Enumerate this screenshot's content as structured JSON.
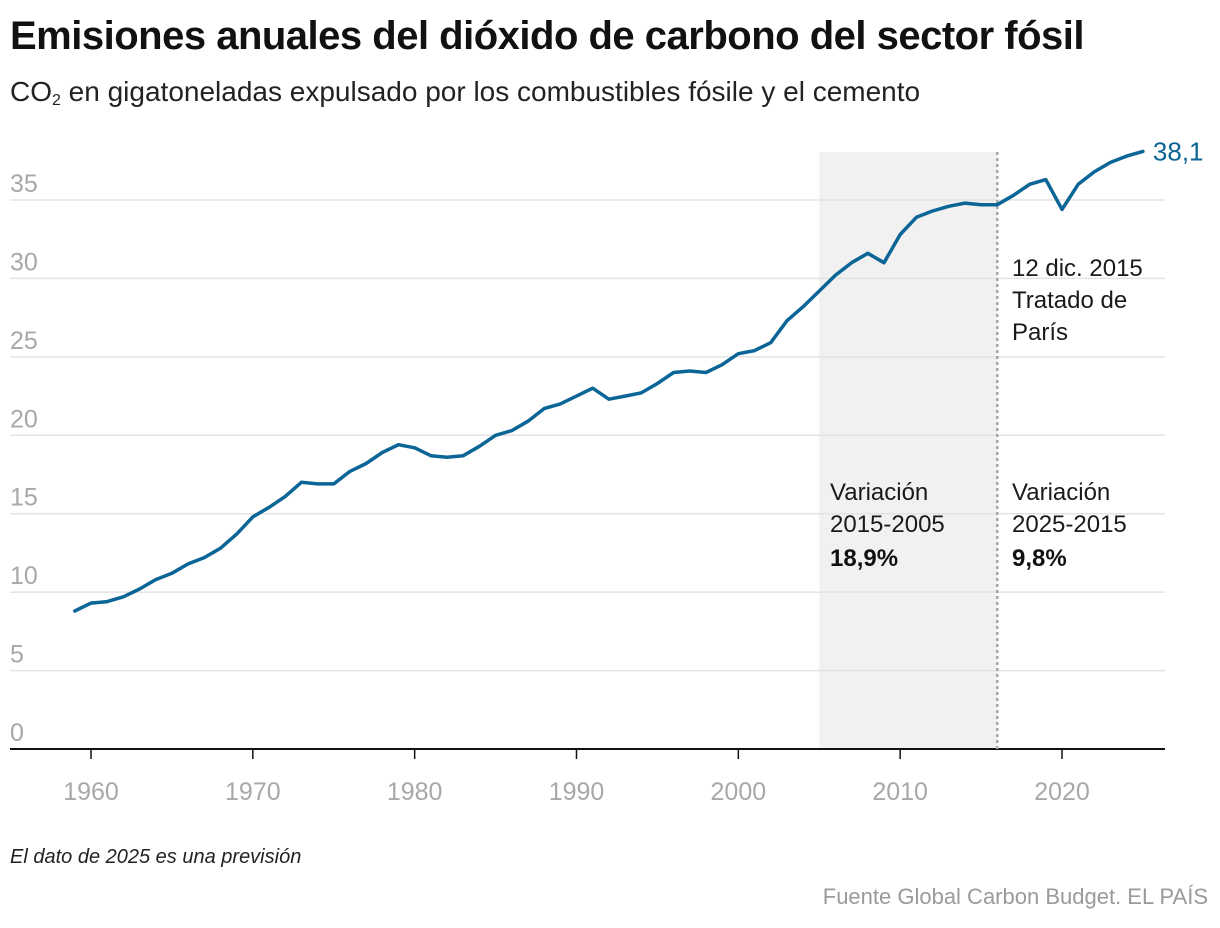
{
  "title": "Emisiones anuales del dióxido de carbono del sector fósil",
  "subtitle": {
    "pre": "CO",
    "sub": "2",
    "post": " en gigatoneladas expulsado por los combustibles fósile y el cemento"
  },
  "note": "El dato de 2025 es una previsión",
  "source": "Fuente Global Carbon Budget. EL PAÍS",
  "colors": {
    "line": "#0b6596",
    "band": "#f1f1f1",
    "grid": "#e3e3e3",
    "tick": "#a8a8a8"
  },
  "chart_data": {
    "type": "line",
    "title": "Emisiones anuales del dióxido de carbono del sector fósil",
    "xlabel": "",
    "ylabel": "",
    "xlim": [
      1951,
      2026
    ],
    "ylim": [
      0,
      38
    ],
    "grid": true,
    "x_ticks": [
      1960,
      1970,
      1980,
      1990,
      2000,
      2010,
      2020
    ],
    "y_ticks": [
      0,
      5,
      10,
      15,
      20,
      25,
      30,
      35
    ],
    "series": [
      {
        "x": [
          1959,
          1960,
          1961,
          1962,
          1963,
          1964,
          1965,
          1966,
          1967,
          1968,
          1969,
          1970,
          1971,
          1972,
          1973,
          1974,
          1975,
          1976,
          1977,
          1978,
          1979,
          1980,
          1981,
          1982,
          1983,
          1984,
          1985,
          1986,
          1987,
          1988,
          1989,
          1990,
          1991,
          1992,
          1993,
          1994,
          1995,
          1996,
          1997,
          1998,
          1999,
          2000,
          2001,
          2002,
          2003,
          2004,
          2005,
          2006,
          2007,
          2008,
          2009,
          2010,
          2011,
          2012,
          2013,
          2014,
          2015,
          2016,
          2017,
          2018,
          2019,
          2020,
          2021,
          2022,
          2023,
          2024,
          2025
        ],
        "values": [
          8.8,
          9.3,
          9.4,
          9.7,
          10.2,
          10.8,
          11.2,
          11.8,
          12.2,
          12.8,
          13.7,
          14.8,
          15.4,
          16.1,
          17.0,
          16.9,
          16.9,
          17.7,
          18.2,
          18.9,
          19.4,
          19.2,
          18.7,
          18.6,
          18.7,
          19.3,
          20.0,
          20.3,
          20.9,
          21.7,
          22.0,
          22.5,
          23.0,
          22.3,
          22.5,
          22.7,
          23.3,
          24.0,
          24.1,
          24.0,
          24.5,
          25.2,
          25.4,
          25.9,
          27.3,
          28.2,
          29.2,
          30.2,
          31.0,
          31.6,
          31.0,
          32.8,
          33.9,
          34.3,
          34.6,
          34.8,
          34.7,
          34.7,
          35.3,
          36.0,
          36.3,
          34.4,
          36.0,
          36.8,
          37.4,
          37.8,
          38.1
        ]
      }
    ],
    "end_label": "38,1",
    "shaded_range": [
      2005,
      2016
    ],
    "reference_line_x": 2016,
    "annotations": {
      "treaty": [
        "12 dic. 2015",
        "Tratado de",
        "París"
      ],
      "variation_1": {
        "label": [
          "Variación",
          "2015-2005"
        ],
        "value": "18,9%"
      },
      "variation_2": {
        "label": [
          "Variación",
          "2025-2015"
        ],
        "value": "9,8%"
      }
    }
  }
}
